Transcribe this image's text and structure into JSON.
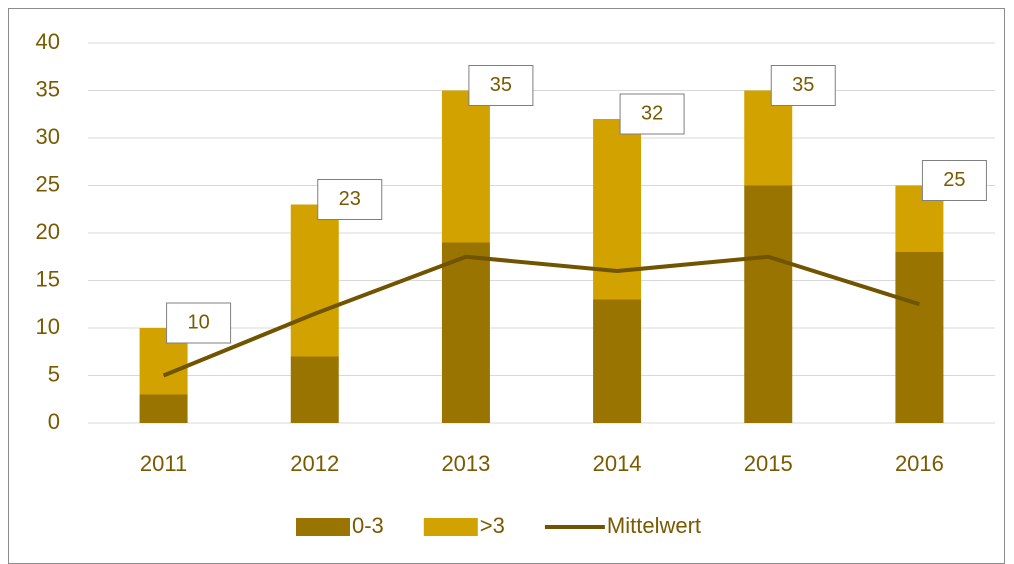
{
  "chart_data": {
    "type": "stacked_bar_line",
    "categories": [
      "2011",
      "2012",
      "2013",
      "2014",
      "2015",
      "2016"
    ],
    "series": [
      {
        "name": "0-3",
        "color": "#9a7400",
        "values": [
          3,
          7,
          19,
          13,
          25,
          18
        ]
      },
      {
        "name": ">3",
        "color": "#d2a200",
        "values": [
          7,
          16,
          16,
          19,
          10,
          7
        ]
      },
      {
        "name": "Mittelwert",
        "color": "#705400",
        "type": "line",
        "values": [
          5,
          11.5,
          17.5,
          16,
          17.5,
          12.5
        ]
      }
    ],
    "totals": [
      10,
      23,
      35,
      32,
      35,
      25
    ],
    "ylim": [
      0,
      40
    ],
    "yticks": [
      0,
      5,
      10,
      15,
      20,
      25,
      30,
      35,
      40
    ],
    "grid": true,
    "legend": "bottom"
  }
}
